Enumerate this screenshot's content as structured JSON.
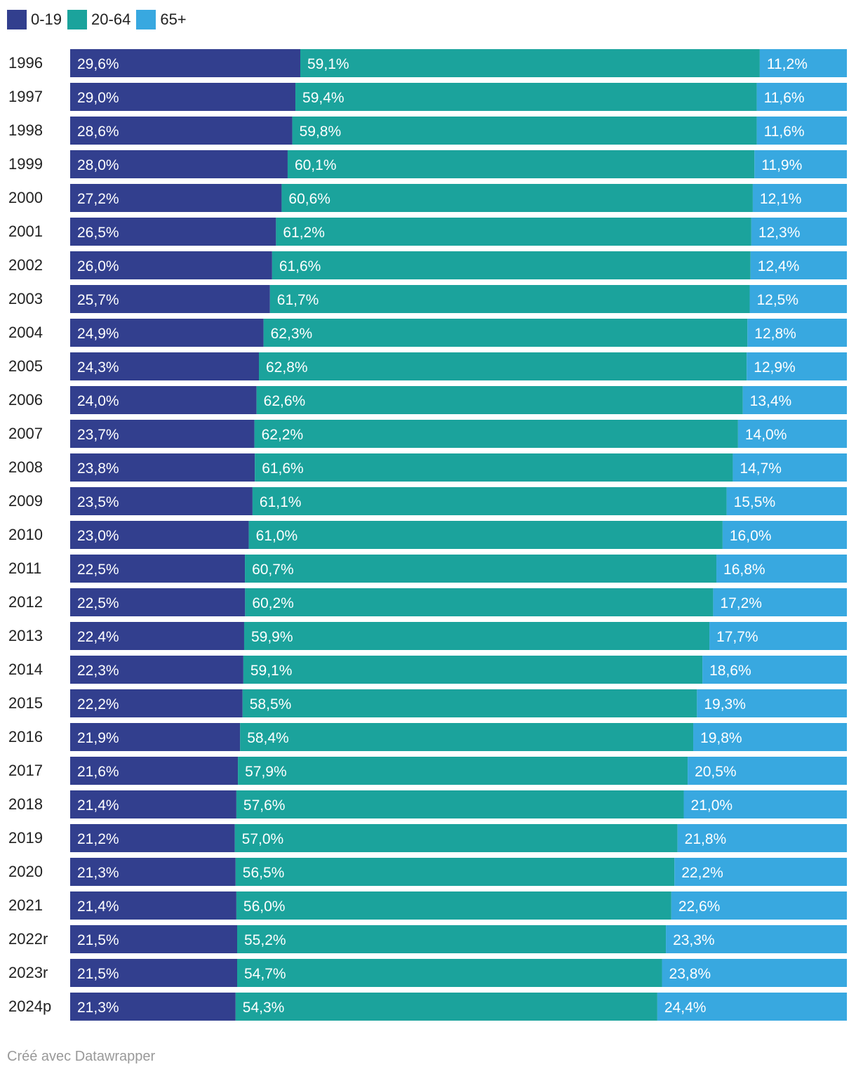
{
  "legend": [
    {
      "label": "0-19",
      "color": "#323f8e"
    },
    {
      "label": "20-64",
      "color": "#1ba39c"
    },
    {
      "label": "65+",
      "color": "#38a8e0"
    }
  ],
  "chart_data": {
    "type": "bar",
    "orientation": "horizontal",
    "stacked": true,
    "stacking": "percent",
    "grid": false,
    "legend_position": "top-left",
    "categories": [
      "1996",
      "1997",
      "1998",
      "1999",
      "2000",
      "2001",
      "2002",
      "2003",
      "2004",
      "2005",
      "2006",
      "2007",
      "2008",
      "2009",
      "2010",
      "2011",
      "2012",
      "2013",
      "2014",
      "2015",
      "2016",
      "2017",
      "2018",
      "2019",
      "2020",
      "2021",
      "2022r",
      "2023r",
      "2024p"
    ],
    "series": [
      {
        "name": "0-19",
        "color": "#323f8e",
        "values": [
          29.6,
          29.0,
          28.6,
          28.0,
          27.2,
          26.5,
          26.0,
          25.7,
          24.9,
          24.3,
          24.0,
          23.7,
          23.8,
          23.5,
          23.0,
          22.5,
          22.5,
          22.4,
          22.3,
          22.2,
          21.9,
          21.6,
          21.4,
          21.2,
          21.3,
          21.4,
          21.5,
          21.5,
          21.3
        ],
        "labels": [
          "29,6%",
          "29,0%",
          "28,6%",
          "28,0%",
          "27,2%",
          "26,5%",
          "26,0%",
          "25,7%",
          "24,9%",
          "24,3%",
          "24,0%",
          "23,7%",
          "23,8%",
          "23,5%",
          "23,0%",
          "22,5%",
          "22,5%",
          "22,4%",
          "22,3%",
          "22,2%",
          "21,9%",
          "21,6%",
          "21,4%",
          "21,2%",
          "21,3%",
          "21,4%",
          "21,5%",
          "21,5%",
          "21,3%"
        ]
      },
      {
        "name": "20-64",
        "color": "#1ba39c",
        "values": [
          59.1,
          59.4,
          59.8,
          60.1,
          60.6,
          61.2,
          61.6,
          61.7,
          62.3,
          62.8,
          62.6,
          62.2,
          61.6,
          61.1,
          61.0,
          60.7,
          60.2,
          59.9,
          59.1,
          58.5,
          58.4,
          57.9,
          57.6,
          57.0,
          56.5,
          56.0,
          55.2,
          54.7,
          54.3
        ],
        "labels": [
          "59,1%",
          "59,4%",
          "59,8%",
          "60,1%",
          "60,6%",
          "61,2%",
          "61,6%",
          "61,7%",
          "62,3%",
          "62,8%",
          "62,6%",
          "62,2%",
          "61,6%",
          "61,1%",
          "61,0%",
          "60,7%",
          "60,2%",
          "59,9%",
          "59,1%",
          "58,5%",
          "58,4%",
          "57,9%",
          "57,6%",
          "57,0%",
          "56,5%",
          "56,0%",
          "55,2%",
          "54,7%",
          "54,3%"
        ]
      },
      {
        "name": "65+",
        "color": "#38a8e0",
        "values": [
          11.2,
          11.6,
          11.6,
          11.9,
          12.1,
          12.3,
          12.4,
          12.5,
          12.8,
          12.9,
          13.4,
          14.0,
          14.7,
          15.5,
          16.0,
          16.8,
          17.2,
          17.7,
          18.6,
          19.3,
          19.8,
          20.5,
          21.0,
          21.8,
          22.2,
          22.6,
          23.3,
          23.8,
          24.4
        ],
        "labels": [
          "11,2%",
          "11,6%",
          "11,6%",
          "11,9%",
          "12,1%",
          "12,3%",
          "12,4%",
          "12,5%",
          "12,8%",
          "12,9%",
          "13,4%",
          "14,0%",
          "14,7%",
          "15,5%",
          "16,0%",
          "16,8%",
          "17,2%",
          "17,7%",
          "18,6%",
          "19,3%",
          "19,8%",
          "20,5%",
          "21,0%",
          "21,8%",
          "22,2%",
          "22,6%",
          "23,3%",
          "23,8%",
          "24,4%"
        ]
      }
    ]
  },
  "footer": {
    "credit": "Créé avec Datawrapper"
  }
}
